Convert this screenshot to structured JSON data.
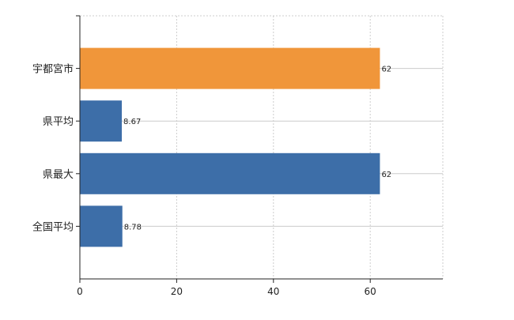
{
  "chart_data": {
    "type": "bar",
    "orientation": "horizontal",
    "categories": [
      "宇都宮市",
      "県平均",
      "県最大",
      "全国平均"
    ],
    "values": [
      62,
      8.67,
      62,
      8.78
    ],
    "value_labels": [
      "62",
      "8.67",
      "62",
      "8.78"
    ],
    "bar_colors": [
      "#f0963a",
      "#3d6ea8",
      "#3d6ea8",
      "#3d6ea8"
    ],
    "xlim": [
      0,
      75
    ],
    "x_ticks": [
      0,
      20,
      40,
      60
    ],
    "title": "",
    "xlabel": "",
    "ylabel": "",
    "grid": true,
    "legend": "none"
  }
}
